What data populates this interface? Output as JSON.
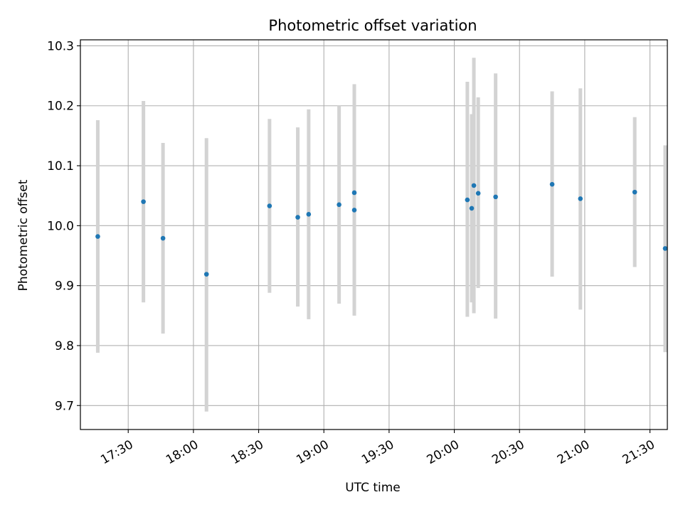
{
  "chart_data": {
    "type": "scatter",
    "title": "Photometric offset variation",
    "xlabel": "UTC time",
    "ylabel": "Photometric offset",
    "x_tick_labels": [
      "17:30",
      "18:00",
      "18:30",
      "19:00",
      "19:30",
      "20:00",
      "20:30",
      "21:00",
      "21:30"
    ],
    "y_tick_labels": [
      "9.7",
      "9.8",
      "9.9",
      "10.0",
      "10.1",
      "10.2",
      "10.3"
    ],
    "xlim": [
      "17:08",
      "21:38"
    ],
    "ylim": [
      9.66,
      10.31
    ],
    "grid": true,
    "colors": {
      "point": "#1f77b4",
      "errorbar": "#d3d3d3",
      "grid": "#b0b0b0"
    },
    "series": [
      {
        "points": [
          {
            "x": "17:16",
            "y": 9.982,
            "y_lower": 9.788,
            "y_upper": 10.176
          },
          {
            "x": "17:37",
            "y": 10.04,
            "y_lower": 9.872,
            "y_upper": 10.208
          },
          {
            "x": "17:46",
            "y": 9.979,
            "y_lower": 9.82,
            "y_upper": 10.138
          },
          {
            "x": "18:06",
            "y": 9.919,
            "y_lower": 9.69,
            "y_upper": 10.146
          },
          {
            "x": "18:35",
            "y": 10.033,
            "y_lower": 9.888,
            "y_upper": 10.178
          },
          {
            "x": "18:48",
            "y": 10.014,
            "y_lower": 9.865,
            "y_upper": 10.164
          },
          {
            "x": "18:53",
            "y": 10.019,
            "y_lower": 9.844,
            "y_upper": 10.194
          },
          {
            "x": "19:07",
            "y": 10.035,
            "y_lower": 9.87,
            "y_upper": 10.2
          },
          {
            "x": "19:14",
            "y": 10.055,
            "y_lower": 9.876,
            "y_upper": 10.236
          },
          {
            "x": "19:14",
            "y": 10.026,
            "y_lower": 9.85,
            "y_upper": 10.2
          },
          {
            "x": "20:06",
            "y": 10.043,
            "y_lower": 9.848,
            "y_upper": 10.24
          },
          {
            "x": "20:08",
            "y": 10.029,
            "y_lower": 9.872,
            "y_upper": 10.186
          },
          {
            "x": "20:09",
            "y": 10.067,
            "y_lower": 9.854,
            "y_upper": 10.28
          },
          {
            "x": "20:11",
            "y": 10.054,
            "y_lower": 9.896,
            "y_upper": 10.214
          },
          {
            "x": "20:19",
            "y": 10.048,
            "y_lower": 9.845,
            "y_upper": 10.254
          },
          {
            "x": "20:45",
            "y": 10.069,
            "y_lower": 9.915,
            "y_upper": 10.224
          },
          {
            "x": "20:58",
            "y": 10.045,
            "y_lower": 9.86,
            "y_upper": 10.229
          },
          {
            "x": "21:23",
            "y": 10.056,
            "y_lower": 9.931,
            "y_upper": 10.181
          },
          {
            "x": "21:37",
            "y": 9.962,
            "y_lower": 9.789,
            "y_upper": 10.134
          }
        ]
      }
    ]
  }
}
